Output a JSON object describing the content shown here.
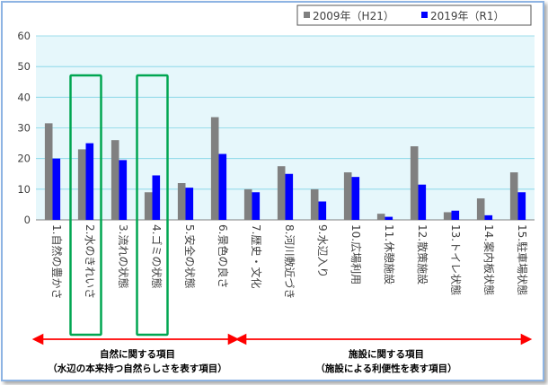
{
  "chart_data": {
    "type": "bar",
    "categories": [
      "1.自然の豊かさ",
      "2.水のきれいさ",
      "3.流れの状態",
      "4.ゴミの状態",
      "5.安全の状態",
      "6.景色の良さ",
      "7.歴史・文化",
      "8.河川敷近づき",
      "9.水辺入り",
      "10.広場利用",
      "11.休憩施設",
      "12.散策施設",
      "13.トイレ状態",
      "14.案内板状態",
      "15.駐車場状態"
    ],
    "series": [
      {
        "name": "2009年（H21）",
        "color": "#808080",
        "values": [
          31.5,
          23,
          26,
          9,
          12,
          33.5,
          10,
          17.5,
          10,
          15.5,
          2,
          24,
          2.5,
          7,
          15.5
        ]
      },
      {
        "name": "2019年（R1）",
        "color": "#0000ff",
        "values": [
          20,
          25,
          19.5,
          14.5,
          10.5,
          21.5,
          9,
          15,
          6,
          14,
          1,
          11.5,
          3,
          1.5,
          9
        ]
      }
    ],
    "ylim": [
      0,
      60
    ],
    "yticks": [
      0,
      10,
      20,
      30,
      40,
      50,
      60
    ],
    "grid": true,
    "legend_position": "top-right",
    "plot_background": "#e6f7fb",
    "gridline_color": "#7fd3e5",
    "highlight_color": "#00a651",
    "arrow_color": "#ff0000",
    "highlighted_categories": [
      1,
      3
    ]
  },
  "annotations": {
    "group1_line1": "自然に関する項目",
    "group1_line2": "（水辺の本来持つ自然らしさを表す項目）",
    "group2_line1": "施設に関する項目",
    "group2_line2": "（施設による利便性を表す項目）"
  }
}
